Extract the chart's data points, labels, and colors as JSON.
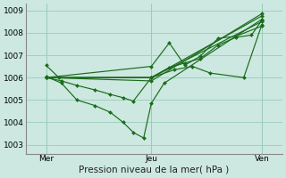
{
  "title": "Pression niveau de la mer( hPa )",
  "bg_color": "#cce8e0",
  "line_color": "#1a6b1a",
  "grid_color": "#99ccbb",
  "ylim": [
    1002.6,
    1009.3
  ],
  "yticks": [
    1003,
    1004,
    1005,
    1006,
    1007,
    1008,
    1009
  ],
  "xtick_labels": [
    "Mer",
    "Jeu",
    "Ven"
  ],
  "xtick_positions": [
    0.08,
    0.49,
    0.92
  ],
  "vline_positions": [
    0.08,
    0.49,
    0.92
  ],
  "series": [
    [
      0.08,
      1006.55,
      0.13,
      1006.0,
      0.49,
      1006.0,
      0.92,
      1008.5
    ],
    [
      0.08,
      1006.05,
      0.14,
      1005.75,
      0.2,
      1005.0,
      0.27,
      1004.75,
      0.33,
      1004.45,
      0.38,
      1004.0,
      0.42,
      1003.55,
      0.46,
      1003.3,
      0.49,
      1004.85,
      0.54,
      1005.75,
      0.92,
      1008.6
    ],
    [
      0.08,
      1006.0,
      0.14,
      1005.85,
      0.2,
      1005.65,
      0.27,
      1005.45,
      0.33,
      1005.25,
      0.38,
      1005.1,
      0.42,
      1004.95,
      0.49,
      1006.0,
      0.56,
      1006.45,
      0.62,
      1006.65,
      0.68,
      1006.85,
      0.75,
      1007.45,
      0.82,
      1007.8,
      0.88,
      1007.9,
      0.92,
      1008.55
    ],
    [
      0.08,
      1006.0,
      0.49,
      1006.0,
      0.58,
      1006.35,
      0.65,
      1006.5,
      0.72,
      1006.2,
      0.85,
      1006.0,
      0.92,
      1008.35
    ],
    [
      0.08,
      1006.0,
      0.49,
      1006.5,
      0.56,
      1007.55,
      0.62,
      1006.55,
      0.68,
      1006.95,
      0.75,
      1007.75,
      0.82,
      1007.85,
      0.92,
      1008.3
    ],
    [
      0.08,
      1006.0,
      0.49,
      1006.0,
      0.92,
      1008.75
    ],
    [
      0.08,
      1006.0,
      0.49,
      1005.85,
      0.92,
      1008.85
    ]
  ],
  "marker": "D",
  "markersize": 2.0,
  "linewidth": 0.85,
  "tick_fontsize": 6.5,
  "xlabel_fontsize": 7.5
}
